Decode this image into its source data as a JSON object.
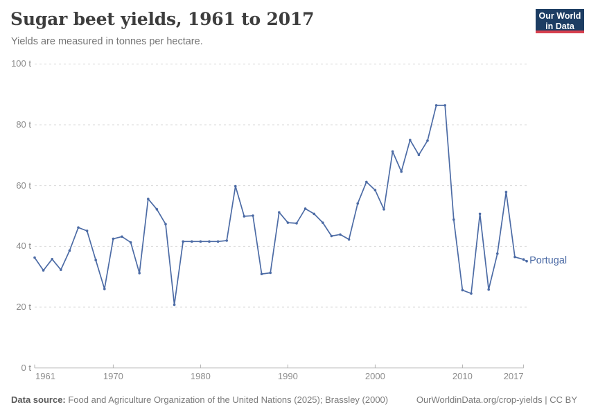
{
  "header": {
    "title": "Sugar beet yields, 1961 to 2017",
    "subtitle": "Yields are measured in tonnes per hectare.",
    "logo": {
      "line1": "Our World",
      "line2": "in Data",
      "bg_color": "#1d3d63",
      "accent_color": "#d8404f"
    }
  },
  "chart_data": {
    "type": "line",
    "title": "Sugar beet yields, 1961 to 2017",
    "ylabel": "tonnes per hectare",
    "xlim": [
      1961,
      2017
    ],
    "ylim": [
      0,
      100
    ],
    "grid": "horizontal-dashed",
    "legend_position": "end-of-line-label",
    "yticks": [
      {
        "value": 0,
        "label": "0 t"
      },
      {
        "value": 20,
        "label": "20 t"
      },
      {
        "value": 40,
        "label": "40 t"
      },
      {
        "value": 60,
        "label": "60 t"
      },
      {
        "value": 80,
        "label": "80 t"
      },
      {
        "value": 100,
        "label": "100 t"
      }
    ],
    "xticks": [
      {
        "value": 1961,
        "label": "1961",
        "align": "left"
      },
      {
        "value": 1970,
        "label": "1970",
        "align": "center"
      },
      {
        "value": 1980,
        "label": "1980",
        "align": "center"
      },
      {
        "value": 1990,
        "label": "1990",
        "align": "center"
      },
      {
        "value": 2000,
        "label": "2000",
        "align": "center"
      },
      {
        "value": 2010,
        "label": "2010",
        "align": "center"
      },
      {
        "value": 2017,
        "label": "2017",
        "align": "right"
      }
    ],
    "series": [
      {
        "name": "Portugal",
        "color": "#4c6ba5",
        "x": [
          1961,
          1962,
          1963,
          1964,
          1965,
          1966,
          1967,
          1968,
          1969,
          1970,
          1971,
          1972,
          1973,
          1974,
          1975,
          1976,
          1977,
          1978,
          1979,
          1980,
          1981,
          1982,
          1983,
          1984,
          1985,
          1986,
          1987,
          1988,
          1989,
          1990,
          1991,
          1992,
          1993,
          1994,
          1995,
          1996,
          1997,
          1998,
          1999,
          2000,
          2001,
          2002,
          2003,
          2004,
          2005,
          2006,
          2007,
          2008,
          2009,
          2010,
          2011,
          2012,
          2013,
          2014,
          2015,
          2016,
          2017
        ],
        "values": [
          36.3,
          32.1,
          35.8,
          32.3,
          38.6,
          46.2,
          45.1,
          35.5,
          26.0,
          42.5,
          43.2,
          41.3,
          31.2,
          55.6,
          52.2,
          47.3,
          20.8,
          41.6,
          41.6,
          41.6,
          41.6,
          41.6,
          41.9,
          59.8,
          49.9,
          50.1,
          30.9,
          31.3,
          51.2,
          47.8,
          47.6,
          52.4,
          50.7,
          47.8,
          43.4,
          43.9,
          42.3,
          54.1,
          61.2,
          58.5,
          52.2,
          71.2,
          64.6,
          75.0,
          70.1,
          74.8,
          86.4,
          86.4,
          48.8,
          25.6,
          24.5,
          50.7,
          25.8,
          37.6,
          57.9,
          36.5,
          35.7
        ]
      }
    ]
  },
  "footer": {
    "source_label": "Data source:",
    "source_text": " Food and Agriculture Organization of the United Nations (2025); Brassley (2000)",
    "right_text": "OurWorldinData.org/crop-yields | CC BY"
  }
}
